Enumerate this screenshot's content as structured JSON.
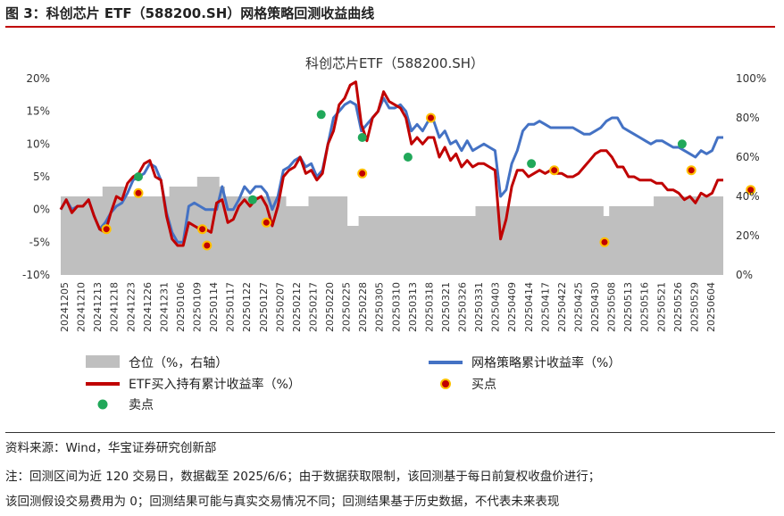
{
  "figure": {
    "label": "图 3：科创芯片 ETF（588200.SH）网格策略回测收益曲线"
  },
  "notes": {
    "source": "资料来源：Wind，华宝证券研究创新部",
    "line1": "注：回测区间为近 120 交易日，数据截至 2025/6/6；由于数据获取限制，该回测基于每日前复权收盘价进行；",
    "line2": "该回测假设交易费用为 0；回测结果可能与真实交易情况不同；回测结果基于历史数据，不代表未来表现"
  },
  "chart_data": {
    "type": "line",
    "title": "科创芯片ETF（588200.SH）",
    "left_axis": {
      "ticks": [
        "-10%",
        "-5%",
        "0%",
        "5%",
        "10%",
        "15%",
        "20%"
      ],
      "ylim": [
        -10,
        20
      ]
    },
    "right_axis": {
      "ticks": [
        "0%",
        "20%",
        "40%",
        "60%",
        "80%",
        "100%"
      ],
      "ylim": [
        0,
        100
      ]
    },
    "x_tick_labels": [
      "20241205",
      "20241210",
      "20241213",
      "20241218",
      "20241223",
      "20241226",
      "20241231",
      "20250106",
      "20250109",
      "20250114",
      "20250117",
      "20250122",
      "20250127",
      "20250207",
      "20250212",
      "20250217",
      "20250220",
      "20250225",
      "20250228",
      "20250305",
      "20250310",
      "20250313",
      "20250318",
      "20250321",
      "20250326",
      "20250331",
      "20250403",
      "20250409",
      "20250414",
      "20250417",
      "20250422",
      "20250425",
      "20250430",
      "20250508",
      "20250513",
      "20250516",
      "20250521",
      "20250526",
      "20250529",
      "20250604"
    ],
    "n_days": 120,
    "legend": {
      "position": "bottom",
      "position_area": "仓位（%，右轴）",
      "grid_line": "网格策略累计收益率（%）",
      "etf_line": "ETF买入持有累计收益率（%）",
      "buy": "买点",
      "sell": "卖点"
    },
    "colors": {
      "position_area": "#bfbfbf",
      "grid_line": "#4472c4",
      "etf_line": "#c00000",
      "buy_fill": "#c00000",
      "buy_edge": "#ffc000",
      "sell": "#21a85a"
    },
    "series": [
      {
        "name": "网格策略累计收益率（%）",
        "axis": "left",
        "values": [
          0,
          1.5,
          0,
          0.5,
          0.5,
          1.5,
          -1,
          -3,
          -2,
          -0.5,
          0.5,
          1,
          2.5,
          4.5,
          5,
          5.5,
          7,
          6.5,
          4.5,
          -0.5,
          -3.5,
          -5,
          -5,
          0.5,
          1,
          0.5,
          0,
          0,
          0,
          3.5,
          3.5,
          0,
          0,
          1.5,
          3.5,
          2.5,
          3.5,
          3.5,
          2.5,
          0,
          2,
          6,
          6.5,
          7.5,
          8,
          6.5,
          7,
          5,
          6,
          10,
          14,
          15,
          16,
          16.5,
          16,
          12,
          13,
          14,
          15,
          17,
          15.5,
          15.5,
          16,
          15,
          12,
          13,
          12,
          13.5,
          13.5,
          11,
          12,
          10,
          10.5,
          9,
          10.5,
          9,
          9.5,
          10,
          9.5,
          9,
          2,
          3,
          7,
          9,
          12,
          13,
          13,
          13.5,
          13,
          12.5,
          12.5,
          13,
          12.5,
          12.5,
          12.5,
          12,
          11.5,
          11.5,
          12,
          12.5,
          13.5,
          14,
          14,
          12.5,
          12,
          11.5,
          11,
          10.5,
          10,
          10.5,
          10.5,
          10,
          9.5,
          9.5,
          9,
          8.5,
          8,
          9,
          8.5,
          9,
          11,
          11
        ]
      },
      {
        "name": "ETF买入持有累计收益率（%）",
        "axis": "left",
        "values": [
          0,
          1.5,
          -0.5,
          0.5,
          0.5,
          1.5,
          -1,
          -3,
          -3.5,
          -0.5,
          2,
          1.5,
          4,
          5,
          5.5,
          7,
          7.5,
          5,
          4.5,
          -1,
          -4.5,
          -5.5,
          -5.5,
          -2,
          -2.5,
          -3,
          -3,
          -3.5,
          1,
          1.5,
          -1,
          -2,
          -1.5,
          0.5,
          1.5,
          0.5,
          1.5,
          2,
          0.5,
          -2.5,
          0.5,
          5,
          6,
          6.5,
          8,
          5.5,
          6,
          4.5,
          5.5,
          10,
          12,
          16,
          17,
          19,
          19.5,
          13,
          10.5,
          14,
          15,
          18,
          16.5,
          16,
          15.5,
          14,
          10,
          11,
          10,
          11,
          11,
          8,
          9.5,
          7.5,
          8.5,
          6.5,
          7.5,
          6.5,
          7,
          7,
          6.5,
          6,
          -4.5,
          -1.5,
          3.5,
          6,
          6,
          5,
          5.5,
          6,
          5.5,
          6,
          5.5,
          5.5,
          5.5,
          5,
          5,
          5.5,
          6.5,
          7.5,
          8.5,
          9,
          9,
          8,
          6.5,
          6.5,
          5,
          5,
          4.5,
          4.5,
          4.5,
          4,
          4,
          3,
          3,
          2.5,
          1.5,
          2,
          1,
          2.5,
          2,
          2.5,
          4.5,
          4.5
        ]
      },
      {
        "name": "仓位（%，右轴）",
        "axis": "right",
        "type": "area",
        "values": [
          40,
          40,
          40,
          40,
          40,
          40,
          40,
          40,
          45,
          45,
          45,
          45,
          40,
          40,
          40,
          40,
          40,
          40,
          40,
          40,
          45,
          45,
          45,
          45,
          45,
          50,
          50,
          50,
          50,
          45,
          40,
          40,
          40,
          40,
          40,
          40,
          40,
          40,
          40,
          40,
          40,
          35,
          35,
          35,
          35,
          40,
          40,
          40,
          40,
          40,
          40,
          40,
          25,
          25,
          30,
          30,
          30,
          30,
          30,
          30,
          30,
          30,
          30,
          30,
          30,
          30,
          30,
          30,
          30,
          30,
          30,
          30,
          30,
          30,
          30,
          35,
          35,
          35,
          35,
          35,
          35,
          35,
          35,
          35,
          35,
          35,
          35,
          35,
          35,
          35,
          35,
          35,
          35,
          35,
          35,
          35,
          35,
          35,
          30,
          35,
          35,
          35,
          35,
          35,
          35,
          35,
          35,
          40,
          40,
          40,
          40,
          40,
          40,
          40,
          40,
          40,
          40,
          40,
          40,
          40
        ]
      }
    ],
    "markers": {
      "buy": [
        [
          10,
          -3
        ],
        [
          17,
          2.5
        ],
        [
          31,
          -3
        ],
        [
          32,
          -5.5
        ],
        [
          45,
          -2
        ],
        [
          66,
          5.5
        ],
        [
          81,
          14
        ],
        [
          108,
          6
        ],
        [
          119,
          -5
        ],
        [
          138,
          6
        ],
        [
          151,
          3
        ]
      ],
      "sell": [
        [
          17,
          5
        ],
        [
          42,
          1.5
        ],
        [
          57,
          14.5
        ],
        [
          66,
          11
        ],
        [
          76,
          8
        ],
        [
          103,
          7
        ],
        [
          136,
          10
        ]
      ]
    }
  }
}
